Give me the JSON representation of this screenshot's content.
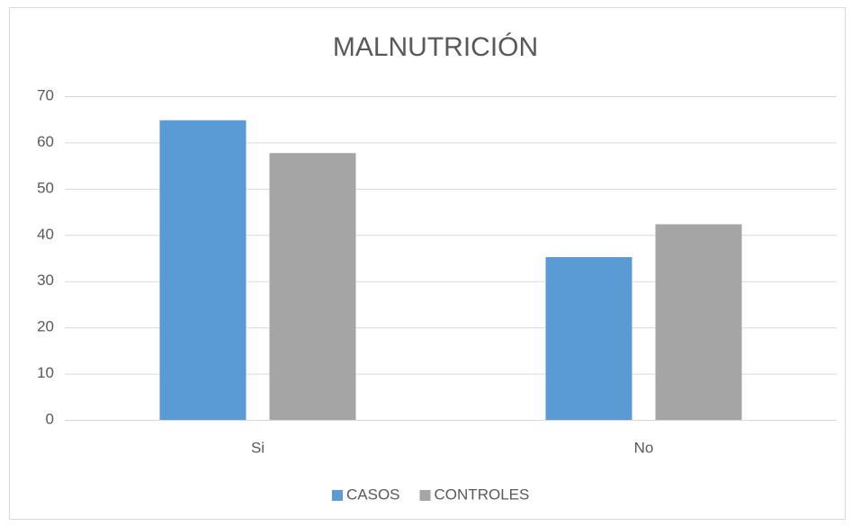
{
  "chart_data": {
    "type": "bar",
    "title": "MALNUTRICIÓN",
    "categories": [
      "Si",
      "No"
    ],
    "series": [
      {
        "name": "CASOS",
        "color": "#5b9bd5",
        "values": [
          64.8,
          35.2
        ]
      },
      {
        "name": "CONTROLES",
        "color": "#a5a5a5",
        "values": [
          57.7,
          42.3
        ]
      }
    ],
    "ylim": [
      0,
      70
    ],
    "yticks": [
      0,
      10,
      20,
      30,
      40,
      50,
      60,
      70
    ],
    "grid": true,
    "legend": "bottom"
  }
}
